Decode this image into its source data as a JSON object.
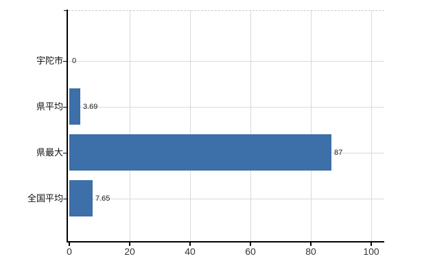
{
  "chart_data": {
    "type": "bar",
    "orientation": "horizontal",
    "title": "",
    "xlabel": "",
    "ylabel": "",
    "categories": [
      "宇陀市",
      "県平均",
      "県最大",
      "全国平均"
    ],
    "values": [
      0,
      3.69,
      87,
      7.65
    ],
    "value_labels": [
      "0",
      "3.69",
      "87",
      "7.65"
    ],
    "xticks": [
      0,
      20,
      40,
      60,
      80,
      100
    ],
    "xtick_labels": [
      "0",
      "20",
      "40",
      "60",
      "80",
      "100"
    ],
    "xlim": [
      0,
      104.4
    ],
    "grid": "on",
    "legend": "none",
    "plot_border_top": "dashed",
    "colors": {
      "bar": "#3d6fa9",
      "grid": "#d9d9d9",
      "border_dashed": "#c9c9c9",
      "axis": "#000000",
      "category_text": "#111111",
      "value_text": "#1a1a1a",
      "tick_text": "#333333",
      "background": "#ffffff"
    }
  }
}
